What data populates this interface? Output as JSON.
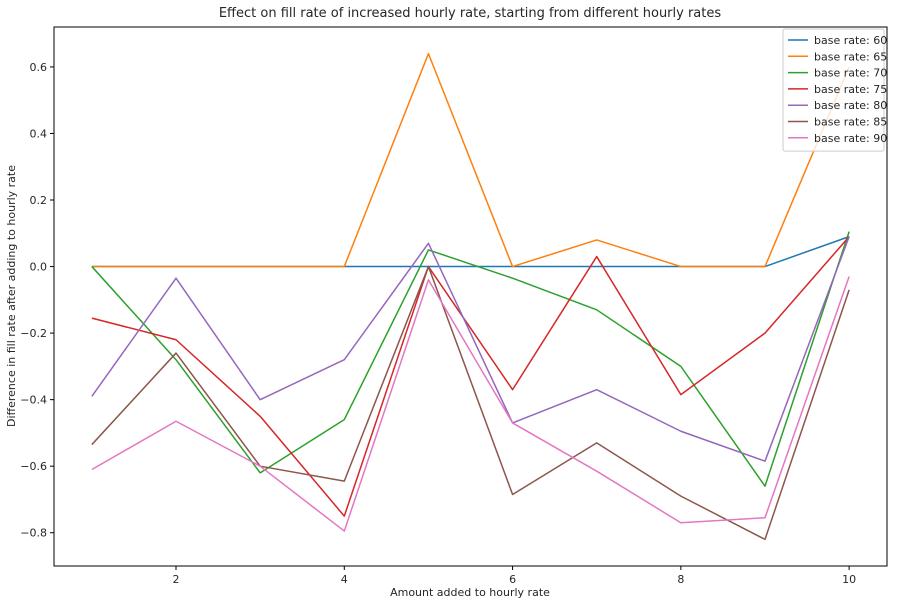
{
  "chart_data": {
    "type": "line",
    "title": "Effect on fill rate of increased hourly rate, starting from different hourly rates",
    "xlabel": "Amount added to hourly rate",
    "ylabel": "Difference in fill rate after adding to hourly rate",
    "x": [
      1,
      2,
      3,
      4,
      5,
      6,
      7,
      8,
      9,
      10
    ],
    "xlim": [
      0.55,
      10.45
    ],
    "ylim": [
      -0.9,
      0.72
    ],
    "xticks": [
      2,
      4,
      6,
      8,
      10
    ],
    "yticks": [
      -0.8,
      -0.6,
      -0.4,
      -0.2,
      0.0,
      0.2,
      0.4,
      0.6
    ],
    "grid": false,
    "legend_position": "top-right",
    "series": [
      {
        "name": "base rate: 60",
        "color": "#1f77b4",
        "values": [
          0,
          0,
          0,
          0,
          0,
          0,
          0,
          0,
          0,
          0.09
        ]
      },
      {
        "name": "base rate: 65",
        "color": "#ff7f0e",
        "values": [
          0,
          0,
          0,
          0,
          0.64,
          0,
          0.08,
          0,
          0,
          0.6
        ]
      },
      {
        "name": "base rate: 70",
        "color": "#2ca02c",
        "values": [
          0,
          -0.28,
          -0.62,
          -0.46,
          0.05,
          -0.035,
          -0.13,
          -0.3,
          -0.66,
          0.105
        ]
      },
      {
        "name": "base rate: 75",
        "color": "#d62728",
        "values": [
          -0.155,
          -0.22,
          -0.45,
          -0.75,
          0,
          -0.37,
          0.03,
          -0.385,
          -0.2,
          0.09
        ]
      },
      {
        "name": "base rate: 80",
        "color": "#9467bd",
        "values": [
          -0.39,
          -0.035,
          -0.4,
          -0.28,
          0.07,
          -0.47,
          -0.37,
          -0.495,
          -0.585,
          0.09
        ]
      },
      {
        "name": "base rate: 85",
        "color": "#8c564b",
        "values": [
          -0.535,
          -0.26,
          -0.6,
          -0.645,
          0,
          -0.685,
          -0.53,
          -0.69,
          -0.82,
          -0.07
        ]
      },
      {
        "name": "base rate: 90",
        "color": "#e377c2",
        "values": [
          -0.61,
          -0.465,
          -0.6,
          -0.795,
          -0.04,
          -0.47,
          -0.615,
          -0.77,
          -0.755,
          -0.03
        ]
      }
    ]
  }
}
